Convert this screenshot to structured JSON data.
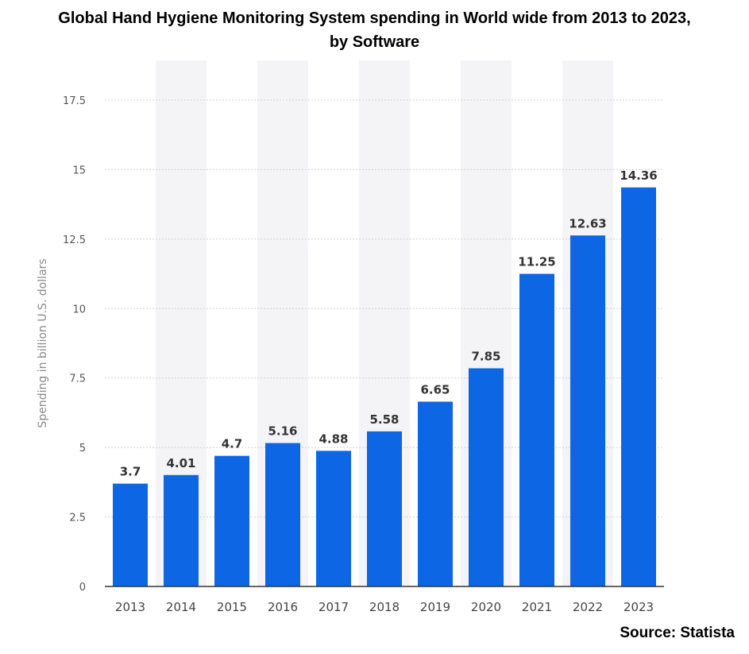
{
  "title_line1": "Global Hand Hygiene Monitoring System spending in World wide from 2013 to 2023,",
  "title_line2": "by Software",
  "source": "Source: Statista",
  "colors": {
    "bar": "#0d66e4",
    "grid": "#d0d0d0",
    "band": "#f4f4f6",
    "axis": "#333333"
  },
  "chart_data": {
    "type": "bar",
    "title": "Global Hand Hygiene Monitoring System spending in World wide from 2013 to 2023, by Software",
    "xlabel": "",
    "ylabel": "Spending in billion U.S. dollars",
    "categories": [
      "2013",
      "2014",
      "2015",
      "2016",
      "2017",
      "2018",
      "2019",
      "2020",
      "2021",
      "2022",
      "2023"
    ],
    "values": [
      3.7,
      4.01,
      4.7,
      5.16,
      4.88,
      5.58,
      6.65,
      7.85,
      11.25,
      12.63,
      14.36
    ],
    "value_labels": [
      "3.7",
      "4.01",
      "4.7",
      "5.16",
      "4.88",
      "5.58",
      "6.65",
      "7.85",
      "11.25",
      "12.63",
      "14.36"
    ],
    "ylim": [
      0,
      17.5
    ],
    "yticks": [
      0,
      2.5,
      5,
      7.5,
      10,
      12.5,
      15,
      17.5
    ],
    "ytick_labels": [
      "0",
      "2.5",
      "5",
      "7.5",
      "10",
      "12.5",
      "15",
      "17.5"
    ],
    "grid": true,
    "legend": "none"
  }
}
